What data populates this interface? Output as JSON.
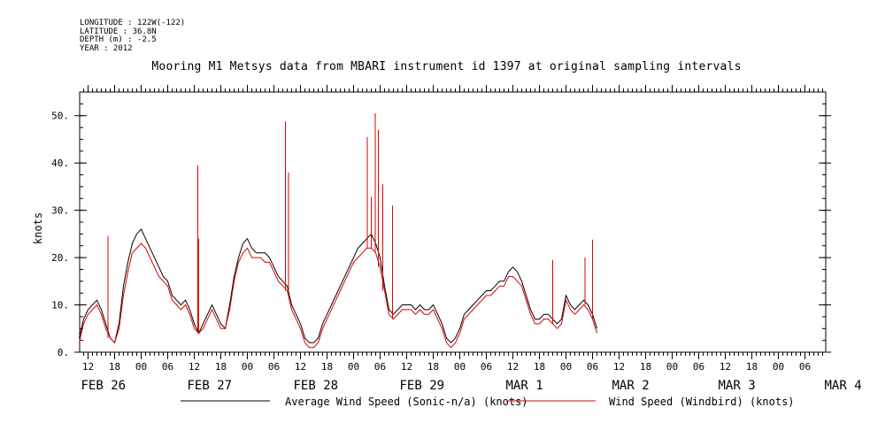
{
  "header": {
    "longitude": "LONGITUDE : 122W(-122)",
    "latitude": "LATITUDE : 36.8N",
    "depth": "DEPTH (m) : -2.5",
    "year": "YEAR : 2012",
    "title": "Mooring M1 Metsys data from MBARI instrument id 1397 at original sampling intervals"
  },
  "chart_data": {
    "type": "line",
    "title": "Mooring M1 Metsys data from MBARI instrument id 1397 at original sampling intervals",
    "xlabel": "",
    "ylabel": "knots",
    "x_unit": "hours since 2012-02-26 00:00",
    "xlim": [
      10,
      127
    ],
    "ylim": [
      0,
      55
    ],
    "yticks": [
      0,
      10,
      20,
      30,
      40,
      50
    ],
    "ytick_labels": [
      "0.",
      "10.",
      "20.",
      "30.",
      "40.",
      "50."
    ],
    "xtick_hours": [
      12,
      18,
      24,
      30,
      36,
      42,
      48,
      54,
      60,
      66,
      72,
      78,
      84,
      90,
      96,
      102,
      108,
      114,
      120,
      126,
      132,
      138,
      144,
      150,
      156,
      162,
      168,
      174,
      180,
      186,
      192,
      198
    ],
    "xtick_labels": [
      "12",
      "18",
      "00",
      "06",
      "12",
      "18",
      "00",
      "06",
      "12",
      "18",
      "00",
      "06",
      "12",
      "18",
      "00",
      "06",
      "12",
      "18",
      "00",
      "06",
      "12",
      "18",
      "00",
      "06",
      "12",
      "18",
      "00",
      "06",
      "12",
      "18",
      "00",
      "06"
    ],
    "date_labels": [
      {
        "hour": 12,
        "label": "FEB 26"
      },
      {
        "hour": 36,
        "label": "FEB 27"
      },
      {
        "hour": 60,
        "label": "FEB 28"
      },
      {
        "hour": 84,
        "label": "FEB 29"
      },
      {
        "hour": 108,
        "label": "MAR  1"
      },
      {
        "hour": 132,
        "label": "MAR  2"
      },
      {
        "hour": 156,
        "label": "MAR  3"
      },
      {
        "hour": 180,
        "label": "MAR  4"
      }
    ],
    "grid": false,
    "legend_position": "bottom",
    "colors": {
      "sonic": "#000000",
      "windbird": "#dd0000"
    },
    "series": [
      {
        "name": "Average Wind Speed (Sonic-n/a) (knots)",
        "color": "#000000",
        "x": [
          10,
          11,
          12,
          13,
          14,
          15,
          16,
          17,
          18,
          19,
          20,
          21,
          22,
          23,
          24,
          25,
          26,
          27,
          28,
          29,
          30,
          31,
          32,
          33,
          34,
          35,
          36,
          37,
          38,
          39,
          40,
          41,
          42,
          43,
          44,
          45,
          46,
          47,
          48,
          49,
          50,
          51,
          52,
          53,
          54,
          55,
          56,
          57,
          58,
          59,
          60,
          61,
          62,
          63,
          64,
          65,
          66,
          67,
          68,
          69,
          70,
          71,
          72,
          73,
          74,
          75,
          76,
          77,
          78,
          79,
          80,
          81,
          82,
          83,
          84,
          85,
          86,
          87,
          88,
          89,
          90,
          91,
          92,
          93,
          94,
          95,
          96,
          97,
          98,
          99,
          100,
          101,
          102,
          103,
          104,
          105,
          106,
          107,
          108,
          109,
          110,
          111,
          112,
          113,
          114,
          115,
          116,
          117,
          118,
          119,
          120,
          121,
          122,
          123,
          124,
          125,
          126,
          127
        ],
        "y": [
          3,
          7,
          9,
          10,
          11,
          9,
          6,
          3,
          2,
          6,
          14,
          19,
          23,
          25,
          26,
          24,
          22,
          20,
          18,
          16,
          15,
          12,
          11,
          10,
          11,
          9,
          6,
          4,
          6,
          8,
          10,
          8,
          6,
          5,
          10,
          16,
          20,
          23,
          24,
          22,
          21,
          21,
          21,
          20,
          18,
          16,
          15,
          14,
          10,
          8,
          6,
          3,
          2,
          2,
          3,
          6,
          8,
          10,
          12,
          14,
          16,
          18,
          20,
          22,
          23,
          24,
          25,
          23,
          20,
          14,
          9,
          8,
          9,
          10,
          10,
          10,
          9,
          10,
          9,
          9,
          10,
          8,
          6,
          3,
          2,
          3,
          5,
          8,
          9,
          10,
          11,
          12,
          13,
          13,
          14,
          15,
          15,
          17,
          18,
          17,
          15,
          12,
          9,
          7,
          7,
          8,
          8,
          7,
          6,
          7,
          12,
          10,
          9,
          10,
          11,
          10,
          8,
          5
        ],
        "values": [
          3,
          7,
          9,
          10,
          11,
          9,
          6,
          3,
          2,
          6,
          14,
          19,
          23,
          25,
          26,
          24,
          22,
          20,
          18,
          16,
          15,
          12,
          11,
          10,
          11,
          9,
          6,
          4,
          6,
          8,
          10,
          8,
          6,
          5,
          10,
          16,
          20,
          23,
          24,
          22,
          21,
          21,
          21,
          20,
          18,
          16,
          15,
          14,
          10,
          8,
          6,
          3,
          2,
          2,
          3,
          6,
          8,
          10,
          12,
          14,
          16,
          18,
          20,
          22,
          23,
          24,
          25,
          23,
          20,
          14,
          9,
          8,
          9,
          10,
          10,
          10,
          9,
          10,
          9,
          9,
          10,
          8,
          6,
          3,
          2,
          3,
          5,
          8,
          9,
          10,
          11,
          12,
          13,
          13,
          14,
          15,
          15,
          17,
          18,
          17,
          15,
          12,
          9,
          7,
          7,
          8,
          8,
          7,
          6,
          7,
          12,
          10,
          9,
          10,
          11,
          10,
          8,
          5
        ]
      },
      {
        "name": "Wind Speed (Windbird) (knots)",
        "color": "#dd0000",
        "x": [
          10,
          11,
          12,
          13,
          14,
          15,
          16,
          17,
          18,
          19,
          20,
          21,
          22,
          23,
          24,
          25,
          26,
          27,
          28,
          29,
          30,
          31,
          32,
          33,
          34,
          35,
          36,
          37,
          38,
          39,
          40,
          41,
          42,
          43,
          44,
          45,
          46,
          47,
          48,
          49,
          50,
          51,
          52,
          53,
          54,
          55,
          56,
          57,
          58,
          59,
          60,
          61,
          62,
          63,
          64,
          65,
          66,
          67,
          68,
          69,
          70,
          71,
          72,
          73,
          74,
          75,
          76,
          77,
          78,
          79,
          80,
          81,
          82,
          83,
          84,
          85,
          86,
          87,
          88,
          89,
          90,
          91,
          92,
          93,
          94,
          95,
          96,
          97,
          98,
          99,
          100,
          101,
          102,
          103,
          104,
          105,
          106,
          107,
          108,
          109,
          110,
          111,
          112,
          113,
          114,
          115,
          116,
          117,
          118,
          119,
          120,
          121,
          122,
          123,
          124,
          125,
          126,
          127
        ],
        "y": [
          2,
          6,
          8,
          9,
          10,
          8,
          5,
          3,
          2,
          5,
          12,
          17,
          21,
          22,
          23,
          22,
          20,
          18,
          16,
          15,
          14,
          11,
          10,
          9,
          10,
          8,
          5,
          4,
          5,
          7,
          9,
          7,
          5,
          5,
          9,
          15,
          19,
          21,
          22,
          20,
          20,
          20,
          19,
          19,
          17,
          15,
          14,
          13,
          9,
          7,
          5,
          2,
          1,
          1,
          2,
          5,
          7,
          9,
          11,
          13,
          15,
          17,
          19,
          20,
          21,
          22,
          22,
          21,
          18,
          13,
          8,
          7,
          8,
          9,
          9,
          9,
          8,
          9,
          8,
          8,
          9,
          7,
          5,
          2,
          1,
          2,
          4,
          7,
          8,
          9,
          10,
          11,
          12,
          12,
          13,
          14,
          14,
          16,
          16,
          15,
          14,
          11,
          8,
          6,
          6,
          7,
          7,
          6,
          5,
          6,
          11,
          9,
          8,
          9,
          10,
          9,
          7,
          4
        ],
        "values": [
          2,
          6,
          8,
          9,
          10,
          8,
          5,
          3,
          2,
          5,
          12,
          17,
          21,
          22,
          23,
          22,
          20,
          18,
          16,
          15,
          14,
          11,
          10,
          9,
          10,
          8,
          5,
          4,
          5,
          7,
          9,
          7,
          5,
          5,
          9,
          15,
          19,
          21,
          22,
          20,
          20,
          20,
          19,
          19,
          17,
          15,
          14,
          13,
          9,
          7,
          5,
          2,
          1,
          1,
          2,
          5,
          7,
          9,
          11,
          13,
          15,
          17,
          19,
          20,
          21,
          22,
          22,
          21,
          18,
          13,
          8,
          7,
          8,
          9,
          9,
          9,
          8,
          9,
          8,
          8,
          9,
          7,
          5,
          2,
          1,
          2,
          4,
          7,
          8,
          9,
          10,
          11,
          12,
          12,
          13,
          14,
          14,
          16,
          16,
          15,
          14,
          11,
          8,
          6,
          6,
          7,
          7,
          6,
          5,
          6,
          11,
          9,
          8,
          9,
          10,
          9,
          7,
          4
        ]
      }
    ],
    "windbird_spikes": [
      {
        "x": 16.5,
        "y": 24.5
      },
      {
        "x": 36.8,
        "y": 39.5
      },
      {
        "x": 37.0,
        "y": 24.0
      },
      {
        "x": 56.6,
        "y": 48.8
      },
      {
        "x": 57.3,
        "y": 38.0
      },
      {
        "x": 75.1,
        "y": 45.5
      },
      {
        "x": 76.0,
        "y": 32.8
      },
      {
        "x": 76.9,
        "y": 50.5
      },
      {
        "x": 77.6,
        "y": 47.0
      },
      {
        "x": 78.6,
        "y": 35.5
      },
      {
        "x": 80.8,
        "y": 31.0
      },
      {
        "x": 117.0,
        "y": 19.5
      },
      {
        "x": 124.3,
        "y": 20.0
      },
      {
        "x": 126.0,
        "y": 23.8
      }
    ]
  },
  "legend": {
    "sonic_label": "Average Wind Speed (Sonic-n/a) (knots)",
    "windbird_label": "Wind Speed (Windbird) (knots)"
  }
}
